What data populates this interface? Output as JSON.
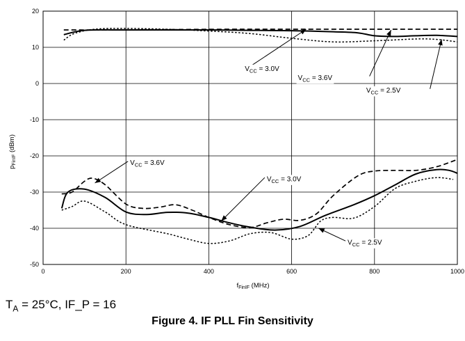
{
  "chart_data": {
    "type": "line",
    "xlabel_main": "f",
    "xlabel_sub": "FinIF",
    "xlabel_unit": " (MHz)",
    "ylabel_main": "p",
    "ylabel_sub": "FinIF",
    "ylabel_unit": " (dBm)",
    "xlim": [
      0,
      1000
    ],
    "ylim": [
      -50,
      20
    ],
    "xticks": [
      0,
      200,
      400,
      600,
      800,
      1000
    ],
    "yticks": [
      20,
      10,
      0,
      -10,
      -20,
      -30,
      -40,
      -50
    ],
    "grid": true,
    "series": [
      {
        "style": "solid",
        "points": [
          [
            50,
            13.5
          ],
          [
            100,
            14.7
          ],
          [
            200,
            14.8
          ],
          [
            300,
            14.8
          ],
          [
            400,
            14.8
          ],
          [
            500,
            14.7
          ],
          [
            600,
            14.6
          ],
          [
            700,
            14.3
          ],
          [
            760,
            14
          ],
          [
            800,
            13.2
          ],
          [
            850,
            13
          ],
          [
            900,
            13.2
          ],
          [
            950,
            13.3
          ],
          [
            1000,
            13
          ]
        ]
      },
      {
        "style": "dashed",
        "points": [
          [
            50,
            14.8
          ],
          [
            150,
            14.8
          ],
          [
            300,
            14.9
          ],
          [
            450,
            15
          ],
          [
            600,
            15
          ],
          [
            800,
            15
          ],
          [
            900,
            15
          ],
          [
            1000,
            15
          ]
        ]
      },
      {
        "style": "dotted",
        "points": [
          [
            50,
            12
          ],
          [
            80,
            14
          ],
          [
            150,
            15.2
          ],
          [
            300,
            15
          ],
          [
            400,
            14.5
          ],
          [
            500,
            13.8
          ],
          [
            600,
            12.5
          ],
          [
            700,
            11.5
          ],
          [
            800,
            11.8
          ],
          [
            900,
            12.3
          ],
          [
            950,
            12.2
          ],
          [
            1000,
            11.5
          ]
        ]
      },
      {
        "style": "solid",
        "points": [
          [
            45,
            -34.5
          ],
          [
            60,
            -30
          ],
          [
            100,
            -29.2
          ],
          [
            150,
            -31.5
          ],
          [
            200,
            -35.5
          ],
          [
            250,
            -36.2
          ],
          [
            300,
            -35.6
          ],
          [
            350,
            -35.8
          ],
          [
            400,
            -37
          ],
          [
            450,
            -38.5
          ],
          [
            500,
            -39.7
          ],
          [
            560,
            -40.5
          ],
          [
            620,
            -39.5
          ],
          [
            680,
            -36.5
          ],
          [
            750,
            -33.5
          ],
          [
            800,
            -31
          ],
          [
            850,
            -28
          ],
          [
            900,
            -25
          ],
          [
            950,
            -23.8
          ],
          [
            980,
            -24
          ],
          [
            1000,
            -24.8
          ]
        ]
      },
      {
        "style": "dashed",
        "points": [
          [
            45,
            -30.5
          ],
          [
            70,
            -30
          ],
          [
            100,
            -27
          ],
          [
            120,
            -26.2
          ],
          [
            150,
            -28
          ],
          [
            200,
            -33.3
          ],
          [
            240,
            -34.5
          ],
          [
            280,
            -34.2
          ],
          [
            320,
            -33.5
          ],
          [
            360,
            -35
          ],
          [
            400,
            -37
          ],
          [
            450,
            -39
          ],
          [
            500,
            -39.8
          ],
          [
            540,
            -38.5
          ],
          [
            580,
            -37.5
          ],
          [
            620,
            -37.8
          ],
          [
            660,
            -36
          ],
          [
            700,
            -31
          ],
          [
            760,
            -25.5
          ],
          [
            800,
            -24.2
          ],
          [
            850,
            -24
          ],
          [
            900,
            -24
          ],
          [
            950,
            -23
          ],
          [
            1000,
            -21
          ]
        ]
      },
      {
        "style": "dotted",
        "points": [
          [
            45,
            -35
          ],
          [
            70,
            -34
          ],
          [
            100,
            -32.5
          ],
          [
            150,
            -35.5
          ],
          [
            200,
            -39
          ],
          [
            300,
            -41.5
          ],
          [
            350,
            -43
          ],
          [
            400,
            -44.2
          ],
          [
            450,
            -43.5
          ],
          [
            500,
            -41.5
          ],
          [
            550,
            -41.2
          ],
          [
            600,
            -43
          ],
          [
            640,
            -42
          ],
          [
            670,
            -38
          ],
          [
            700,
            -37
          ],
          [
            750,
            -37.2
          ],
          [
            800,
            -34
          ],
          [
            850,
            -29
          ],
          [
            900,
            -27
          ],
          [
            950,
            -26
          ],
          [
            990,
            -26.5
          ]
        ]
      }
    ],
    "annotations": [
      {
        "label_main": "V",
        "label_sub": "CC",
        "label_rest": " = 3.0V",
        "text_at": [
          487,
          3.5
        ],
        "arrow_from": [
          497,
          4.5
        ],
        "arrow_to": [
          635,
          15
        ]
      },
      {
        "label_main": "V",
        "label_sub": "CC",
        "label_rest": " = 3.6V",
        "text_at": [
          615,
          1.0
        ],
        "arrow_from": [
          788,
          2.0
        ],
        "arrow_to": [
          840,
          14.8
        ]
      },
      {
        "label_main": "V",
        "label_sub": "CC",
        "label_rest": " = 2.5V",
        "text_at": [
          780,
          -2.5
        ],
        "arrow_from": [
          934,
          -1.5
        ],
        "arrow_to": [
          962,
          12.2
        ]
      },
      {
        "label_main": "V",
        "label_sub": "CC",
        "label_rest": " = 3.6V",
        "text_at": [
          210,
          -22.5
        ],
        "arrow_from": [
          205,
          -21.5
        ],
        "arrow_to": [
          125,
          -27.5
        ]
      },
      {
        "label_main": "V",
        "label_sub": "CC",
        "label_rest": " = 3.0V",
        "text_at": [
          540,
          -27.0
        ],
        "arrow_from": [
          535,
          -26.0
        ],
        "arrow_to": [
          430,
          -38.0
        ]
      },
      {
        "label_main": "V",
        "label_sub": "CC",
        "label_rest": " = 2.5V",
        "text_at": [
          735,
          -44.5
        ],
        "arrow_from": [
          730,
          -43.5
        ],
        "arrow_to": [
          665,
          -40.0
        ]
      }
    ]
  },
  "conditions": {
    "t_main": "T",
    "t_sub": "A",
    "rest": " = 25°C, IF_P = 16"
  },
  "caption": "Figure 4. IF PLL Fin Sensitivity"
}
